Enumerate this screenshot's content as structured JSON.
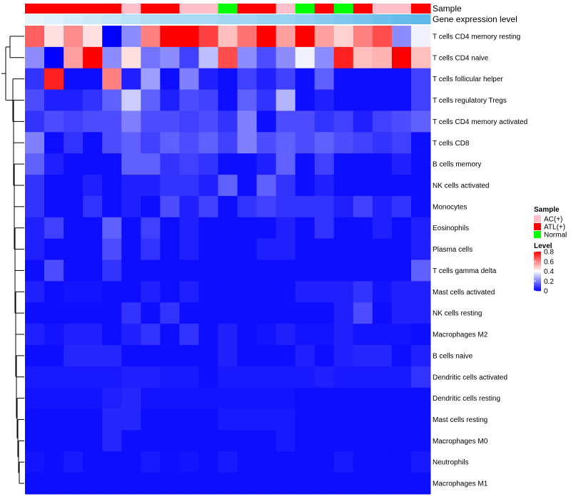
{
  "chart_data": {
    "type": "heatmap",
    "annotation_labels": {
      "sample": "Sample",
      "gene_expression": "Gene expression level"
    },
    "sample_groups": [
      "ATL(+)",
      "ATL(+)",
      "ATL(+)",
      "ATL(+)",
      "ATL(+)",
      "AC(+)",
      "ATL(+)",
      "ATL(+)",
      "AC(+)",
      "AC(+)",
      "Normal",
      "ATL(+)",
      "ATL(+)",
      "AC(+)",
      "Normal",
      "ATL(+)",
      "Normal",
      "ATL(+)",
      "AC(+)",
      "AC(+)",
      "ATL(+)"
    ],
    "gene_expression": [
      0.15,
      0.2,
      0.25,
      0.3,
      0.35,
      0.4,
      0.45,
      0.5,
      0.5,
      0.5,
      0.55,
      0.55,
      0.6,
      0.6,
      0.65,
      0.7,
      0.75,
      0.8,
      0.85,
      0.9,
      0.95
    ],
    "rows": [
      "T cells CD4 memory resting",
      "T cells CD4 naive",
      "T cells follicular helper",
      "T cells regulatory  Tregs",
      "T cells CD4 memory activated",
      "T cells CD8",
      "B cells memory",
      "NK cells activated",
      "Monocytes",
      "Eosinophils",
      "Plasma cells",
      "T cells gamma delta",
      "Mast cells activated",
      "NK cells resting",
      "Macrophages M2",
      "B cells naive",
      "Dendritic cells activated",
      "Dendritic cells resting",
      "Mast cells resting",
      "Macrophages M0",
      "Neutrophils",
      "Macrophages M1"
    ],
    "values": [
      [
        0.65,
        0.45,
        0.58,
        0.45,
        0.0,
        0.22,
        0.6,
        0.8,
        0.8,
        0.7,
        0.5,
        0.62,
        0.8,
        0.55,
        0.8,
        0.55,
        0.47,
        0.6,
        0.68,
        0.22,
        0.38
      ],
      [
        0.22,
        0.0,
        0.55,
        0.8,
        0.22,
        0.45,
        0.18,
        0.22,
        0.1,
        0.3,
        0.68,
        0.22,
        0.12,
        0.22,
        0.38,
        0.22,
        0.75,
        0.5,
        0.52,
        0.8,
        0.5
      ],
      [
        0.08,
        0.75,
        0.02,
        0.02,
        0.6,
        0.05,
        0.25,
        0.02,
        0.2,
        0.05,
        0.02,
        0.1,
        0.05,
        0.1,
        0.02,
        0.15,
        0.02,
        0.02,
        0.02,
        0.02,
        0.1
      ],
      [
        0.12,
        0.05,
        0.05,
        0.08,
        0.15,
        0.32,
        0.15,
        0.05,
        0.12,
        0.1,
        0.02,
        0.15,
        0.08,
        0.28,
        0.02,
        0.05,
        0.02,
        0.02,
        0.02,
        0.02,
        0.1
      ],
      [
        0.08,
        0.12,
        0.1,
        0.12,
        0.12,
        0.2,
        0.12,
        0.12,
        0.1,
        0.12,
        0.08,
        0.2,
        0.02,
        0.12,
        0.12,
        0.08,
        0.1,
        0.05,
        0.1,
        0.12,
        0.15
      ],
      [
        0.2,
        0.02,
        0.08,
        0.02,
        0.12,
        0.15,
        0.1,
        0.15,
        0.12,
        0.15,
        0.1,
        0.2,
        0.12,
        0.15,
        0.12,
        0.15,
        0.12,
        0.1,
        0.08,
        0.1,
        0.02
      ],
      [
        0.15,
        0.05,
        0.02,
        0.02,
        0.02,
        0.15,
        0.15,
        0.08,
        0.1,
        0.08,
        0.02,
        0.02,
        0.05,
        0.15,
        0.02,
        0.1,
        0.02,
        0.02,
        0.02,
        0.05,
        0.02
      ],
      [
        0.08,
        0.02,
        0.02,
        0.05,
        0.02,
        0.05,
        0.05,
        0.08,
        0.08,
        0.05,
        0.15,
        0.02,
        0.15,
        0.08,
        0.02,
        0.05,
        0.02,
        0.02,
        0.02,
        0.02,
        0.02
      ],
      [
        0.08,
        0.02,
        0.02,
        0.08,
        0.02,
        0.05,
        0.02,
        0.12,
        0.05,
        0.1,
        0.02,
        0.08,
        0.1,
        0.08,
        0.08,
        0.08,
        0.05,
        0.1,
        0.05,
        0.08,
        0.02
      ],
      [
        0.05,
        0.1,
        0.02,
        0.02,
        0.15,
        0.02,
        0.1,
        0.02,
        0.05,
        0.02,
        0.02,
        0.02,
        0.02,
        0.05,
        0.02,
        0.08,
        0.02,
        0.02,
        0.05,
        0.02,
        0.05
      ],
      [
        0.05,
        0.02,
        0.02,
        0.02,
        0.12,
        0.02,
        0.08,
        0.02,
        0.05,
        0.02,
        0.02,
        0.02,
        0.05,
        0.05,
        0.02,
        0.02,
        0.02,
        0.02,
        0.02,
        0.02,
        0.05
      ],
      [
        0.02,
        0.12,
        0.02,
        0.02,
        0.08,
        0.02,
        0.02,
        0.02,
        0.02,
        0.02,
        0.02,
        0.02,
        0.02,
        0.02,
        0.02,
        0.02,
        0.02,
        0.02,
        0.02,
        0.02,
        0.15
      ],
      [
        0.05,
        0.02,
        0.03,
        0.03,
        0.02,
        0.02,
        0.05,
        0.02,
        0.05,
        0.02,
        0.02,
        0.02,
        0.02,
        0.02,
        0.05,
        0.05,
        0.05,
        0.08,
        0.03,
        0.05,
        0.05
      ],
      [
        0.02,
        0.02,
        0.02,
        0.02,
        0.02,
        0.08,
        0.02,
        0.08,
        0.02,
        0.02,
        0.02,
        0.02,
        0.02,
        0.02,
        0.02,
        0.02,
        0.05,
        0.12,
        0.02,
        0.05,
        0.05
      ],
      [
        0.05,
        0.03,
        0.05,
        0.05,
        0.02,
        0.05,
        0.08,
        0.02,
        0.08,
        0.02,
        0.05,
        0.02,
        0.03,
        0.05,
        0.03,
        0.03,
        0.05,
        0.03,
        0.03,
        0.03,
        0.02
      ],
      [
        0.02,
        0.02,
        0.06,
        0.06,
        0.06,
        0.02,
        0.02,
        0.02,
        0.02,
        0.02,
        0.05,
        0.02,
        0.02,
        0.02,
        0.05,
        0.02,
        0.05,
        0.06,
        0.06,
        0.02,
        0.05
      ],
      [
        0.04,
        0.04,
        0.04,
        0.04,
        0.04,
        0.05,
        0.05,
        0.04,
        0.04,
        0.02,
        0.04,
        0.04,
        0.04,
        0.04,
        0.04,
        0.05,
        0.04,
        0.04,
        0.04,
        0.04,
        0.08
      ],
      [
        0.03,
        0.03,
        0.03,
        0.03,
        0.05,
        0.06,
        0.03,
        0.03,
        0.03,
        0.03,
        0.03,
        0.03,
        0.03,
        0.03,
        0.02,
        0.02,
        0.02,
        0.02,
        0.02,
        0.02,
        0.02
      ],
      [
        0.02,
        0.02,
        0.02,
        0.02,
        0.06,
        0.06,
        0.02,
        0.02,
        0.02,
        0.02,
        0.04,
        0.04,
        0.04,
        0.04,
        0.02,
        0.02,
        0.02,
        0.02,
        0.02,
        0.02,
        0.02
      ],
      [
        0.02,
        0.02,
        0.02,
        0.02,
        0.06,
        0.02,
        0.02,
        0.02,
        0.02,
        0.02,
        0.02,
        0.02,
        0.02,
        0.04,
        0.02,
        0.02,
        0.02,
        0.02,
        0.02,
        0.02,
        0.02
      ],
      [
        0.03,
        0.02,
        0.04,
        0.02,
        0.02,
        0.02,
        0.04,
        0.02,
        0.03,
        0.02,
        0.04,
        0.02,
        0.02,
        0.02,
        0.02,
        0.02,
        0.04,
        0.02,
        0.02,
        0.02,
        0.04
      ],
      [
        0.02,
        0.02,
        0.02,
        0.02,
        0.02,
        0.02,
        0.02,
        0.02,
        0.02,
        0.02,
        0.02,
        0.02,
        0.02,
        0.02,
        0.02,
        0.02,
        0.02,
        0.02,
        0.02,
        0.02,
        0.02
      ]
    ],
    "dendrogram_order": [
      0,
      1,
      2,
      3,
      4,
      5,
      6,
      7,
      8,
      9,
      10,
      11,
      12,
      13,
      14,
      15,
      16,
      17,
      18,
      19,
      20,
      21
    ],
    "sample_legend": {
      "title": "Sample",
      "items": [
        {
          "label": "AC(+)",
          "color": "#ffc0cb"
        },
        {
          "label": "ATL(+)",
          "color": "#ff0000"
        },
        {
          "label": "Normal",
          "color": "#00ff00"
        }
      ]
    },
    "level_legend": {
      "title": "Level",
      "ticks": [
        "0.8",
        "0.6",
        "0.4",
        "0.2",
        "0"
      ],
      "tick_values": [
        0.8,
        0.6,
        0.4,
        0.2,
        0
      ]
    },
    "color_scale": {
      "low": "#0000ff",
      "mid": "#ffffff",
      "high": "#ff0000",
      "min": 0,
      "mid_value": 0.4,
      "max": 0.8
    },
    "gene_expression_scale": {
      "low": "#ffffff",
      "high": "#56b4e9"
    }
  }
}
